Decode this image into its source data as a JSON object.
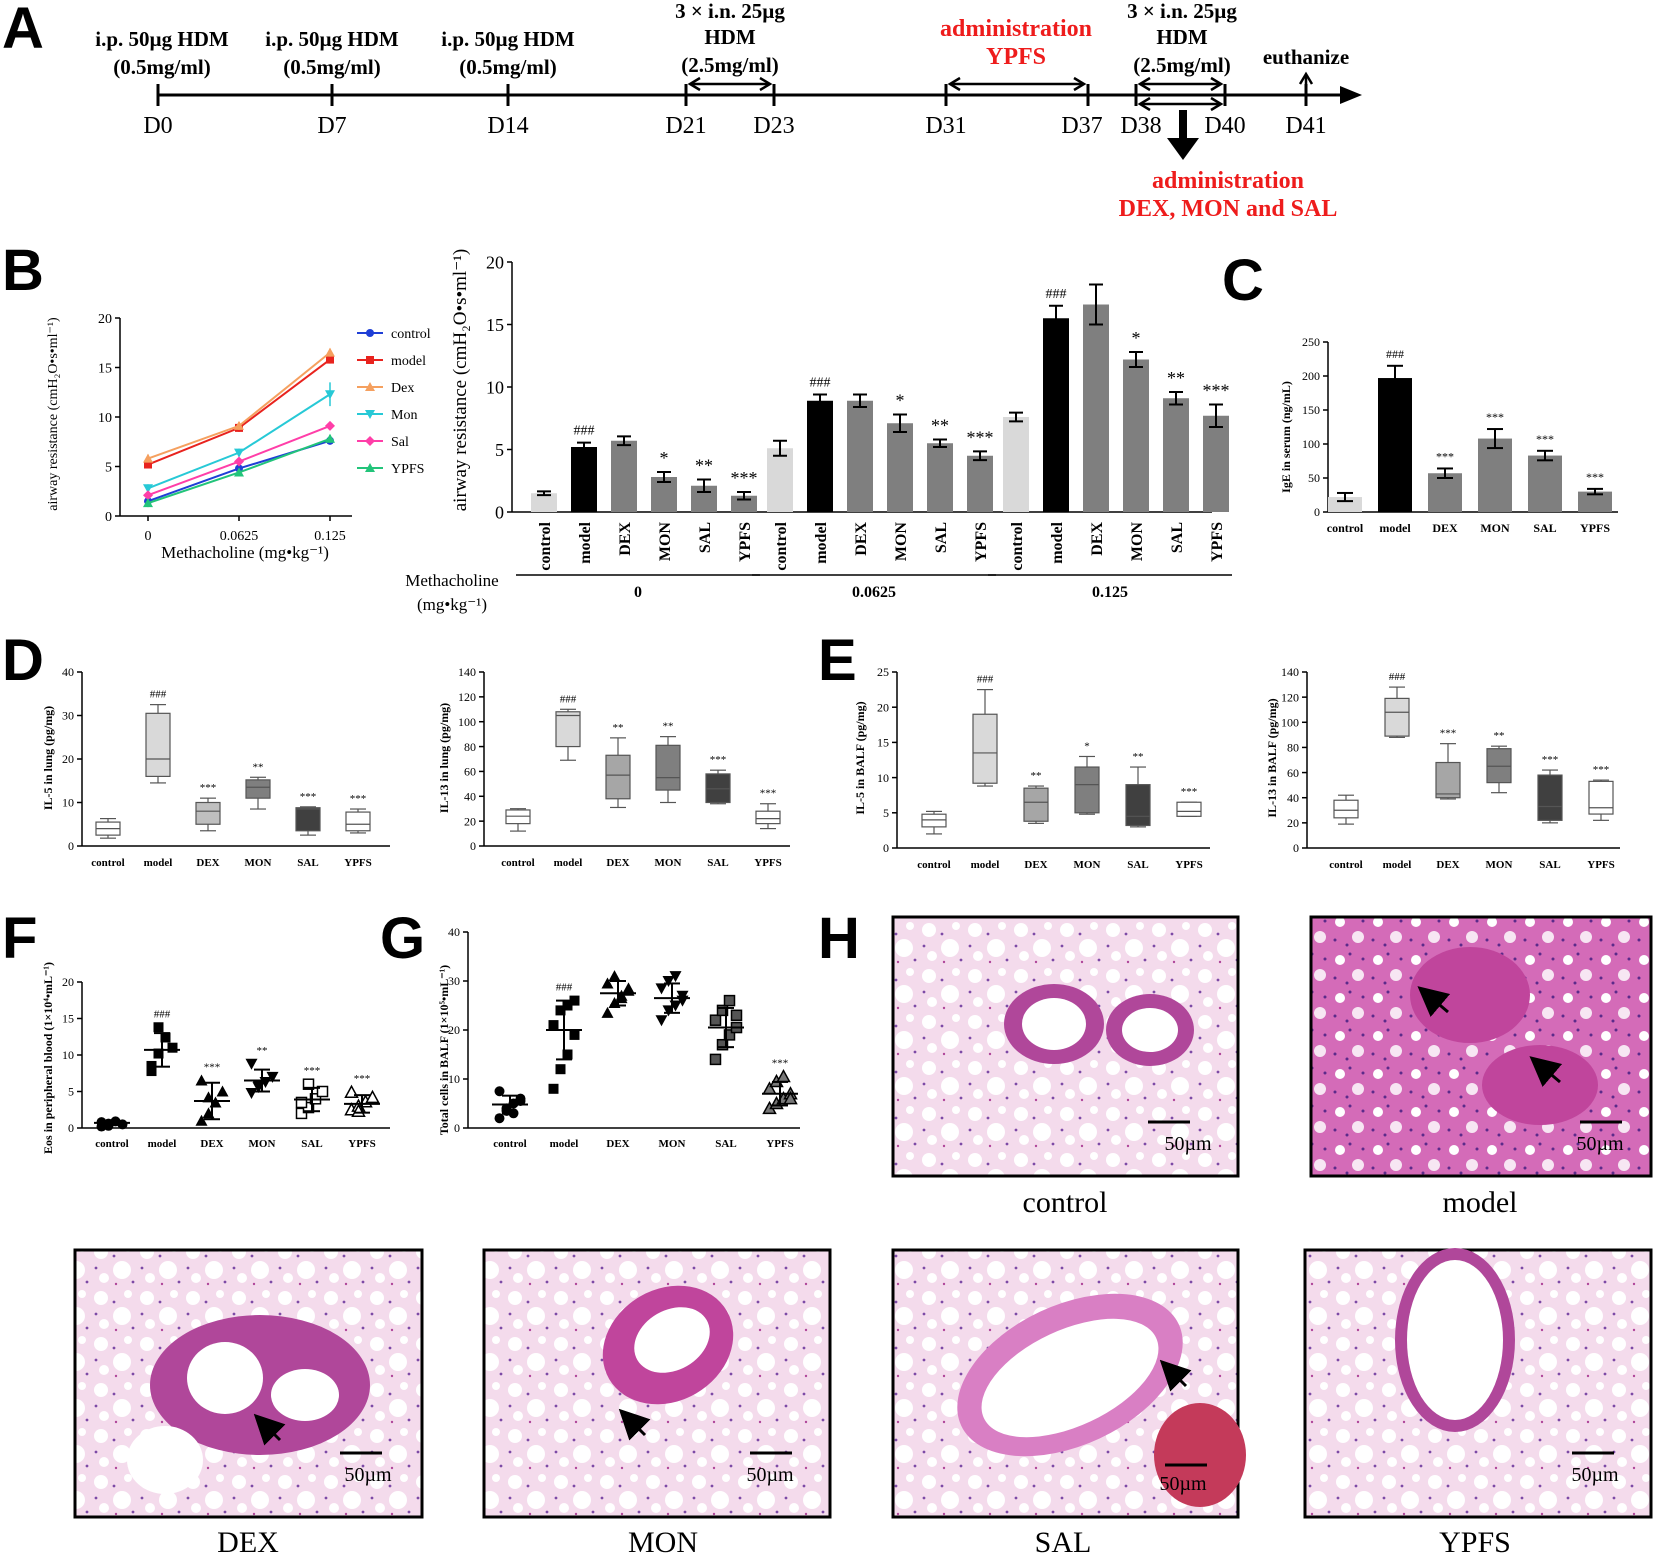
{
  "colors": {
    "control": "#1f3fd6",
    "model": "#e8231e",
    "dex": "#f5a05f",
    "mon": "#27c9d6",
    "sal": "#ff3ea8",
    "ypfs": "#22c47a",
    "red_text": "#ee1c1c"
  },
  "panels": {
    "A": "A",
    "B": "B",
    "C": "C",
    "D": "D",
    "E": "E",
    "F": "F",
    "G": "G",
    "H": "H"
  },
  "timeline": {
    "days": [
      "D0",
      "D7",
      "D14",
      "D21",
      "D23",
      "D31",
      "D37",
      "D38",
      "D40",
      "D41"
    ],
    "ip": [
      {
        "line1": "i.p. 50µg HDM",
        "line2": "(0.5mg/ml)"
      },
      {
        "line1": "i.p. 50µg HDM",
        "line2": "(0.5mg/ml)"
      },
      {
        "line1": "i.p. 50µg HDM",
        "line2": "(0.5mg/ml)"
      }
    ],
    "in1": {
      "line1": "3 × i.n. 25µg",
      "line2": "HDM",
      "line3": "(2.5mg/ml)"
    },
    "in2": {
      "line1": "3 × i.n. 25µg",
      "line2": "HDM",
      "line3": "(2.5mg/ml)"
    },
    "ypfs_admin": {
      "line1": "administration",
      "line2": "YPFS"
    },
    "euthanize": "euthanize",
    "drug_admin": {
      "line1": "administration",
      "line2": "DEX, MON and SAL"
    }
  },
  "chart_data": [
    {
      "id": "B-line",
      "type": "line",
      "xlabel": "Methacholine (mg•kg⁻¹)",
      "ylabel": "airway resistance (cmH₂O•s•ml⁻¹)",
      "x": [
        "0",
        "0.0625",
        "0.125"
      ],
      "ylim": [
        0,
        20
      ],
      "yticks": [
        "0",
        "5",
        "10",
        "15",
        "20"
      ],
      "series": [
        {
          "name": "control",
          "values": [
            1.5,
            4.8,
            7.6
          ]
        },
        {
          "name": "model",
          "values": [
            5.2,
            8.9,
            15.8
          ]
        },
        {
          "name": "Dex",
          "values": [
            5.8,
            9.1,
            16.5
          ]
        },
        {
          "name": "Mon",
          "values": [
            2.8,
            6.4,
            12.3
          ]
        },
        {
          "name": "Sal",
          "values": [
            2.1,
            5.5,
            9.1
          ]
        },
        {
          "name": "YPFS",
          "values": [
            1.3,
            4.4,
            7.8
          ]
        }
      ]
    },
    {
      "id": "B-bar",
      "type": "bar",
      "ylabel": "airway resistance (cmH₂O•s•ml⁻¹)",
      "ylim": [
        0,
        20
      ],
      "yticks": [
        "0",
        "5",
        "10",
        "15",
        "20"
      ],
      "groups_title": "Methacholine",
      "groups_unit": "(mg•kg⁻¹)",
      "groups": [
        {
          "label": "0",
          "categories": [
            "control",
            "model",
            "DEX",
            "MON",
            "SAL",
            "YPFS"
          ],
          "values": [
            1.5,
            5.2,
            5.7,
            2.8,
            2.1,
            1.3
          ],
          "errors": [
            0.15,
            0.35,
            0.35,
            0.4,
            0.5,
            0.3
          ],
          "annotations": [
            "",
            "###",
            "",
            "*",
            "**",
            "***"
          ]
        },
        {
          "label": "0.0625",
          "categories": [
            "control",
            "model",
            "DEX",
            "MON",
            "SAL",
            "YPFS"
          ],
          "values": [
            5.1,
            8.9,
            8.9,
            7.1,
            5.5,
            4.5
          ],
          "errors": [
            0.6,
            0.5,
            0.5,
            0.7,
            0.3,
            0.35
          ],
          "annotations": [
            "",
            "###",
            "",
            "*",
            "**",
            "***"
          ]
        },
        {
          "label": "0.125",
          "categories": [
            "control",
            "model",
            "DEX",
            "MON",
            "SAL",
            "YPFS"
          ],
          "values": [
            7.6,
            15.5,
            16.6,
            12.2,
            9.1,
            7.7
          ],
          "errors": [
            0.35,
            1.0,
            1.6,
            0.6,
            0.5,
            0.9
          ],
          "annotations": [
            "",
            "###",
            "",
            "*",
            "**",
            "***"
          ]
        }
      ]
    },
    {
      "id": "C",
      "type": "bar",
      "ylabel": "IgE in serum (ng/mL)",
      "ylim": [
        0,
        250
      ],
      "yticks": [
        "0",
        "50",
        "100",
        "150",
        "200",
        "250"
      ],
      "categories": [
        "control",
        "model",
        "DEX",
        "MON",
        "SAL",
        "YPFS"
      ],
      "values": [
        22,
        197,
        57,
        108,
        83,
        30
      ],
      "errors": [
        6,
        18,
        7,
        14,
        7,
        4
      ],
      "annotations": [
        "",
        "###",
        "***",
        "***",
        "***",
        "***"
      ]
    },
    {
      "id": "D-IL5",
      "type": "box",
      "ylabel": "IL-5 in lung (pg/mg)",
      "ylim": [
        0,
        40
      ],
      "yticks": [
        "0",
        "10",
        "20",
        "30",
        "40"
      ],
      "categories": [
        "control",
        "model",
        "DEX",
        "MON",
        "SAL",
        "YPFS"
      ],
      "boxes": [
        [
          1.8,
          2.5,
          4.0,
          5.5,
          6.3
        ],
        [
          14.5,
          16.0,
          20.0,
          30.5,
          32.5
        ],
        [
          3.5,
          5.0,
          8.0,
          10.0,
          11.0
        ],
        [
          8.5,
          11.0,
          13.5,
          15.2,
          15.8
        ],
        [
          2.5,
          3.5,
          8.5,
          8.8,
          9.0
        ],
        [
          3.0,
          3.5,
          5.0,
          7.8,
          8.5
        ]
      ],
      "annotations": [
        "",
        "###",
        "***",
        "**",
        "***",
        "***"
      ]
    },
    {
      "id": "D-IL13",
      "type": "box",
      "ylabel": "IL-13 in lung (pg/mg)",
      "ylim": [
        0,
        140
      ],
      "yticks": [
        "0",
        "20",
        "40",
        "60",
        "80",
        "100",
        "120",
        "140"
      ],
      "categories": [
        "control",
        "model",
        "DEX",
        "MON",
        "SAL",
        "YPFS"
      ],
      "boxes": [
        [
          12,
          18,
          24,
          29,
          30
        ],
        [
          69,
          80,
          105,
          108,
          110
        ],
        [
          31,
          38,
          57,
          73,
          87
        ],
        [
          35,
          45,
          55,
          81,
          88
        ],
        [
          34,
          35,
          46,
          58,
          61
        ],
        [
          14,
          18,
          22,
          28,
          34
        ]
      ],
      "annotations": [
        "",
        "###",
        "**",
        "**",
        "***",
        "***"
      ]
    },
    {
      "id": "E-IL5",
      "type": "box",
      "ylabel": "IL-5 in BALF (pg/mg)",
      "ylim": [
        0,
        25
      ],
      "yticks": [
        "0",
        "5",
        "10",
        "15",
        "20",
        "25"
      ],
      "categories": [
        "control",
        "model",
        "DEX",
        "MON",
        "SAL",
        "YPFS"
      ],
      "boxes": [
        [
          2.0,
          3.0,
          4.0,
          4.8,
          5.2
        ],
        [
          8.8,
          9.2,
          13.5,
          19.0,
          22.5
        ],
        [
          3.5,
          3.8,
          6.5,
          8.5,
          8.8
        ],
        [
          4.8,
          5.0,
          9.0,
          11.5,
          13.0
        ],
        [
          3.0,
          3.2,
          4.5,
          9.0,
          11.5
        ],
        [
          4.5,
          4.5,
          5.2,
          6.5,
          6.5
        ]
      ],
      "annotations": [
        "",
        "###",
        "**",
        "*",
        "**",
        "***"
      ]
    },
    {
      "id": "E-IL13",
      "type": "box",
      "ylabel": "IL-13 in BALF (pg/mg)",
      "ylim": [
        0,
        140
      ],
      "yticks": [
        "0",
        "20",
        "40",
        "60",
        "80",
        "100",
        "120",
        "140"
      ],
      "categories": [
        "control",
        "model",
        "DEX",
        "MON",
        "SAL",
        "YPFS"
      ],
      "boxes": [
        [
          19,
          24,
          30,
          38,
          42
        ],
        [
          88,
          89,
          108,
          119,
          128
        ],
        [
          39,
          40,
          43,
          68,
          83
        ],
        [
          44,
          52,
          65,
          79,
          81
        ],
        [
          20,
          22,
          33,
          58,
          62
        ],
        [
          22,
          27,
          32,
          53,
          54
        ]
      ],
      "annotations": [
        "",
        "###",
        "***",
        "**",
        "***",
        "***"
      ]
    },
    {
      "id": "F",
      "type": "scatter",
      "ylabel": "Eos in peripheral blood (1×10⁴•mL⁻¹)",
      "ylim": [
        0,
        20
      ],
      "yticks": [
        "0",
        "5",
        "10",
        "15",
        "20"
      ],
      "categories": [
        "control",
        "model",
        "DEX",
        "MON",
        "SAL",
        "YPFS"
      ],
      "markers": [
        "circle",
        "square",
        "triangle",
        "tri-down",
        "square-open",
        "triangle-open"
      ],
      "points": [
        [
          0.2,
          0.6,
          0.9,
          0.5,
          0.8,
          0.3
        ],
        [
          8.5,
          10.2,
          12.4,
          11.0,
          7.8,
          13.8
        ],
        [
          1.0,
          2.0,
          3.5,
          5.0,
          6.5,
          4.2
        ],
        [
          4.8,
          5.8,
          6.3,
          7.0,
          8.8,
          5.6
        ],
        [
          2.0,
          2.8,
          4.0,
          5.0,
          3.5,
          6.0
        ],
        [
          2.5,
          3.0,
          3.6,
          4.2,
          4.9,
          2.3
        ]
      ],
      "means": [
        0.7,
        10.7,
        3.7,
        6.5,
        3.9,
        3.3
      ],
      "sd": [
        0.25,
        2.3,
        2.5,
        1.5,
        1.6,
        1.2
      ],
      "annotations": [
        "",
        "###",
        "***",
        "**",
        "***",
        "***"
      ]
    },
    {
      "id": "G",
      "type": "scatter",
      "ylabel": "Total cells in BALF (1×10⁵•mL⁻¹)",
      "ylim": [
        0,
        40
      ],
      "yticks": [
        "0",
        "10",
        "20",
        "30",
        "40"
      ],
      "categories": [
        "control",
        "model",
        "DEX",
        "MON",
        "SAL",
        "YPFS"
      ],
      "markers": [
        "circle",
        "square",
        "triangle",
        "tri-down",
        "square-half",
        "triangle-half"
      ],
      "points": [
        [
          2,
          3.5,
          5,
          6,
          7.5,
          4,
          3,
          5.5
        ],
        [
          8,
          12,
          15,
          19,
          21,
          24,
          25,
          26
        ],
        [
          23.5,
          25.5,
          27,
          28,
          29.5,
          31,
          26.5,
          28.5
        ],
        [
          22,
          24,
          25,
          27,
          28.5,
          30,
          31,
          26
        ],
        [
          14,
          17,
          19,
          20.5,
          22,
          24,
          26,
          23
        ],
        [
          4,
          5,
          6,
          7,
          8,
          9.5,
          10.5,
          6
        ]
      ],
      "means": [
        4.8,
        20.0,
        27.5,
        26.5,
        20.5,
        7.0
      ],
      "sd": [
        1.8,
        6.0,
        2.5,
        3.0,
        4.0,
        2.4
      ],
      "annotations": [
        "",
        "###",
        "",
        "",
        "",
        "***"
      ]
    }
  ],
  "B_legend": [
    "control",
    "model",
    "Dex",
    "Mon",
    "Sal",
    "YPFS"
  ],
  "histology": [
    {
      "label": "control",
      "scale": "50µm"
    },
    {
      "label": "model",
      "scale": "50µm"
    },
    {
      "label": "DEX",
      "scale": "50µm"
    },
    {
      "label": "MON",
      "scale": "50µm"
    },
    {
      "label": "SAL",
      "scale": "50µm"
    },
    {
      "label": "YPFS",
      "scale": "50µm"
    }
  ]
}
